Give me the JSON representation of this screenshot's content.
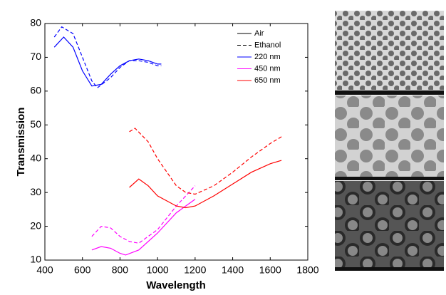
{
  "chart_data": {
    "type": "line",
    "xlabel": "Wavelength",
    "ylabel": "Transmission",
    "xlim": [
      400,
      1800
    ],
    "xticks": [
      400,
      600,
      800,
      1000,
      1200,
      1400,
      1600,
      1800
    ],
    "ylim": [
      10,
      80
    ],
    "yticks": [
      10,
      20,
      30,
      40,
      50,
      60,
      70,
      80
    ],
    "grid": false,
    "legend": "upper right",
    "styles": [
      {
        "name": "Air",
        "dash": "solid"
      },
      {
        "name": "Ethanol",
        "dash": "dashed"
      }
    ],
    "series": [
      {
        "name": "220 nm",
        "color": "#0000ff",
        "style": "solid",
        "x": [
          450,
          500,
          550,
          600,
          650,
          700,
          750,
          800,
          850,
          900,
          950,
          1000,
          1020
        ],
        "values": [
          73,
          76,
          73,
          66,
          61.5,
          62,
          65,
          67.5,
          69,
          69.5,
          69,
          68,
          68
        ]
      },
      {
        "name": "220 nm",
        "color": "#0000ff",
        "style": "dashed",
        "x": [
          450,
          490,
          550,
          600,
          650,
          680,
          750,
          800,
          850,
          900,
          950,
          1000,
          1020
        ],
        "values": [
          76,
          79,
          77,
          70,
          63,
          61,
          64,
          67,
          69,
          69,
          68.5,
          67.5,
          67.5
        ]
      },
      {
        "name": "450 nm",
        "color": "#ff00ff",
        "style": "solid",
        "x": [
          650,
          700,
          750,
          800,
          830,
          900,
          1000,
          1100,
          1200
        ],
        "values": [
          13,
          14,
          13.5,
          12,
          11.5,
          13,
          18,
          24,
          28
        ]
      },
      {
        "name": "450 nm",
        "color": "#ff00ff",
        "style": "dashed",
        "x": [
          650,
          700,
          750,
          800,
          850,
          900,
          1000,
          1100,
          1200
        ],
        "values": [
          17,
          20,
          19.5,
          17,
          15.5,
          15,
          19,
          26,
          32
        ]
      },
      {
        "name": "650 nm",
        "color": "#ff0000",
        "style": "solid",
        "x": [
          850,
          900,
          950,
          1000,
          1100,
          1150,
          1200,
          1300,
          1400,
          1500,
          1600,
          1660
        ],
        "values": [
          31.5,
          34,
          32,
          29,
          26,
          25.5,
          26,
          29,
          32.5,
          36,
          38.5,
          39.5
        ]
      },
      {
        "name": "650 nm",
        "color": "#ff0000",
        "style": "dashed",
        "x": [
          850,
          880,
          950,
          1000,
          1100,
          1150,
          1200,
          1300,
          1400,
          1500,
          1600,
          1660
        ],
        "values": [
          48,
          49,
          45,
          40,
          32,
          30,
          29.5,
          32,
          36,
          40.5,
          44.5,
          46.5
        ]
      }
    ]
  }
}
